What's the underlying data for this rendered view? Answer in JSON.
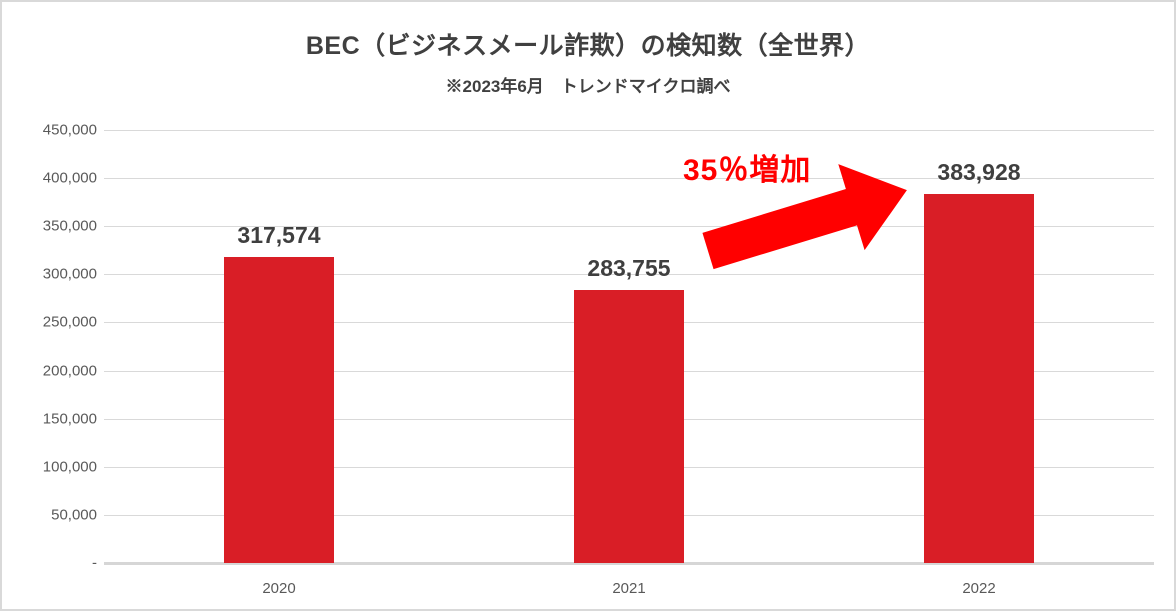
{
  "colors": {
    "bar": "#d91e26",
    "arrow": "#ff0000",
    "annotation_text": "#ff0000",
    "grid": "#d9d9d9",
    "axis_text": "#595959",
    "value_label_text": "#3f3f3f",
    "title_text": "#404040",
    "border": "#d9d9d9"
  },
  "chart_data": {
    "type": "bar",
    "title": "BEC（ビジネスメール詐欺）の検知数（全世界）",
    "subtitle": "※2023年6月　トレンドマイクロ調べ",
    "categories": [
      "2020",
      "2021",
      "2022"
    ],
    "values": [
      317574,
      283755,
      383928
    ],
    "value_labels": [
      "317,574",
      "283,755",
      "383,928"
    ],
    "xlabel": "",
    "ylabel": "",
    "ylim": [
      0,
      450000
    ],
    "ytick_interval": 50000,
    "ytick_labels": [
      "-",
      "50,000",
      "100,000",
      "150,000",
      "200,000",
      "250,000",
      "300,000",
      "350,000",
      "400,000",
      "450,000"
    ],
    "grid": true,
    "legend": false,
    "annotation": "35％増加",
    "annotation_target": "2022"
  }
}
